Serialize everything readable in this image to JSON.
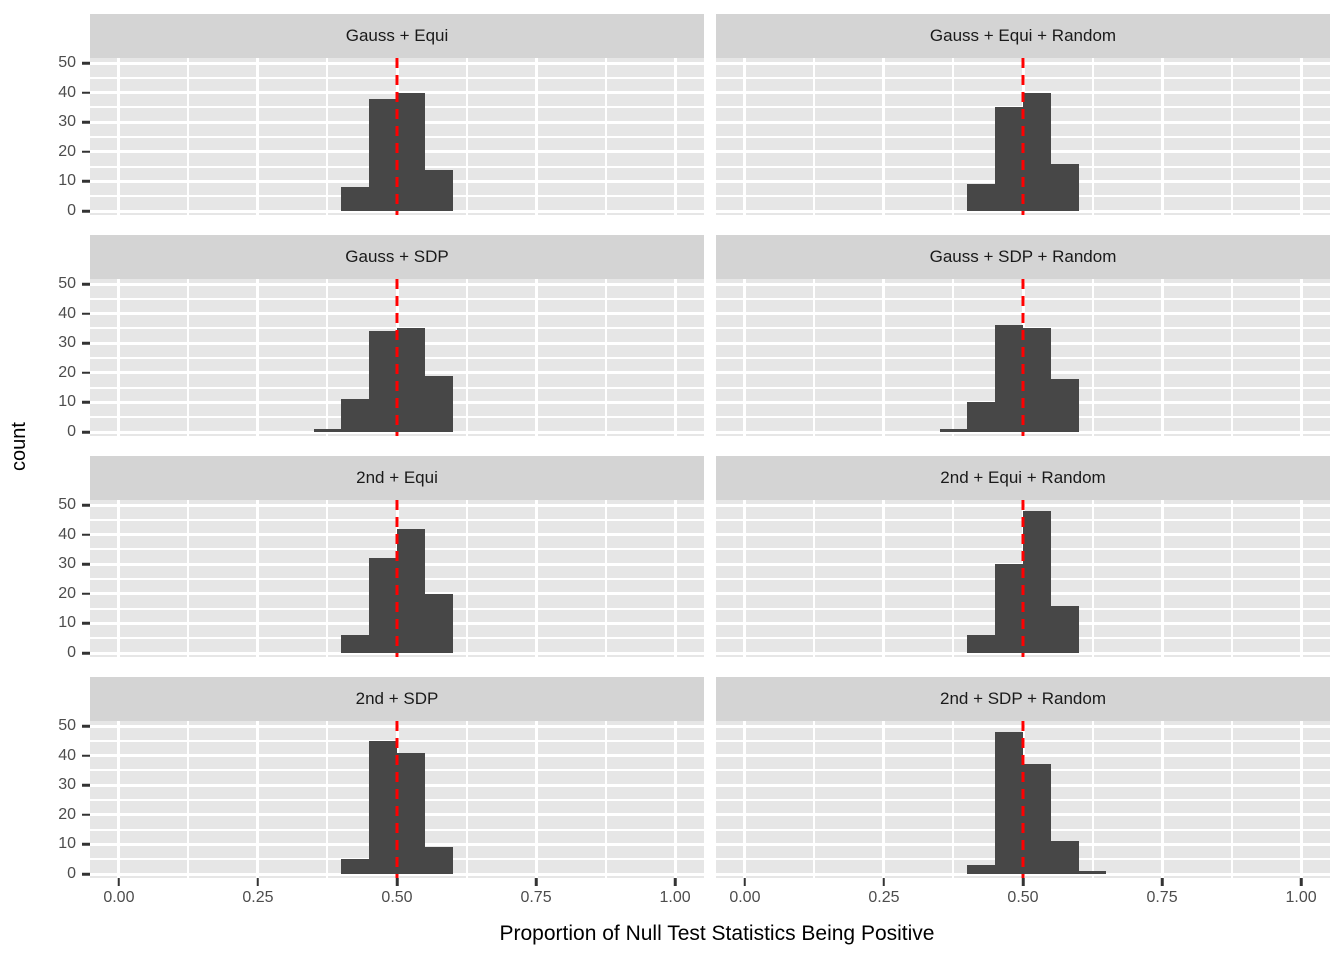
{
  "chart_data": {
    "type": "bar",
    "subtype": "faceted-histograms",
    "title": "",
    "xlabel": "Proportion of Null Test Statistics Being Positive",
    "ylabel": "count",
    "facet_grid": {
      "rows": 4,
      "cols": 2
    },
    "x_ticks": [
      0,
      0.25,
      0.5,
      0.75,
      1.0
    ],
    "x_tick_labels": [
      "0.00",
      "0.25",
      "0.50",
      "0.75",
      "1.00"
    ],
    "x_minor_ticks": [
      0,
      0.125,
      0.25,
      0.375,
      0.5,
      0.625,
      0.75,
      0.875,
      1.0
    ],
    "y_ticks": [
      0,
      10,
      20,
      30,
      40,
      50
    ],
    "y_minor_ticks": [
      0,
      5,
      10,
      15,
      20,
      25,
      30,
      35,
      40,
      45,
      50
    ],
    "xlim": [
      -0.052,
      1.052
    ],
    "ylim": [
      0,
      52
    ],
    "grid": true,
    "legend": "none",
    "bin_width": 0.05,
    "vline": {
      "x": 0.5,
      "style": "dashed",
      "color": "#ff0000"
    },
    "panels": [
      {
        "title": "Gauss + Equi",
        "bin_start": 0.4,
        "counts": [
          8,
          38,
          40,
          14
        ]
      },
      {
        "title": "Gauss + Equi + Random",
        "bin_start": 0.4,
        "counts": [
          9,
          35,
          40,
          16
        ]
      },
      {
        "title": "Gauss + SDP",
        "bin_start": 0.35,
        "counts": [
          1,
          11,
          34,
          35,
          19
        ]
      },
      {
        "title": "Gauss + SDP + Random",
        "bin_start": 0.35,
        "counts": [
          1,
          10,
          36,
          35,
          18
        ]
      },
      {
        "title": "2nd + Equi",
        "bin_start": 0.4,
        "counts": [
          6,
          32,
          42,
          20
        ]
      },
      {
        "title": "2nd + Equi + Random",
        "bin_start": 0.4,
        "counts": [
          6,
          30,
          48,
          16
        ]
      },
      {
        "title": "2nd + SDP",
        "bin_start": 0.4,
        "counts": [
          5,
          45,
          41,
          9
        ]
      },
      {
        "title": "2nd + SDP + Random",
        "bin_start": 0.4,
        "counts": [
          3,
          48,
          37,
          11,
          1
        ]
      }
    ],
    "colors": {
      "bar_fill": "#474747",
      "panel_background": "#e6e6e6",
      "gridline": "#ffffff",
      "strip_background": "#d4d4d4",
      "strip_text": "#1a1a1a",
      "axis_text": "#4d4d4d",
      "axis_title": "#000000",
      "tick_mark": "#333333",
      "vline": "#ff0000"
    }
  }
}
